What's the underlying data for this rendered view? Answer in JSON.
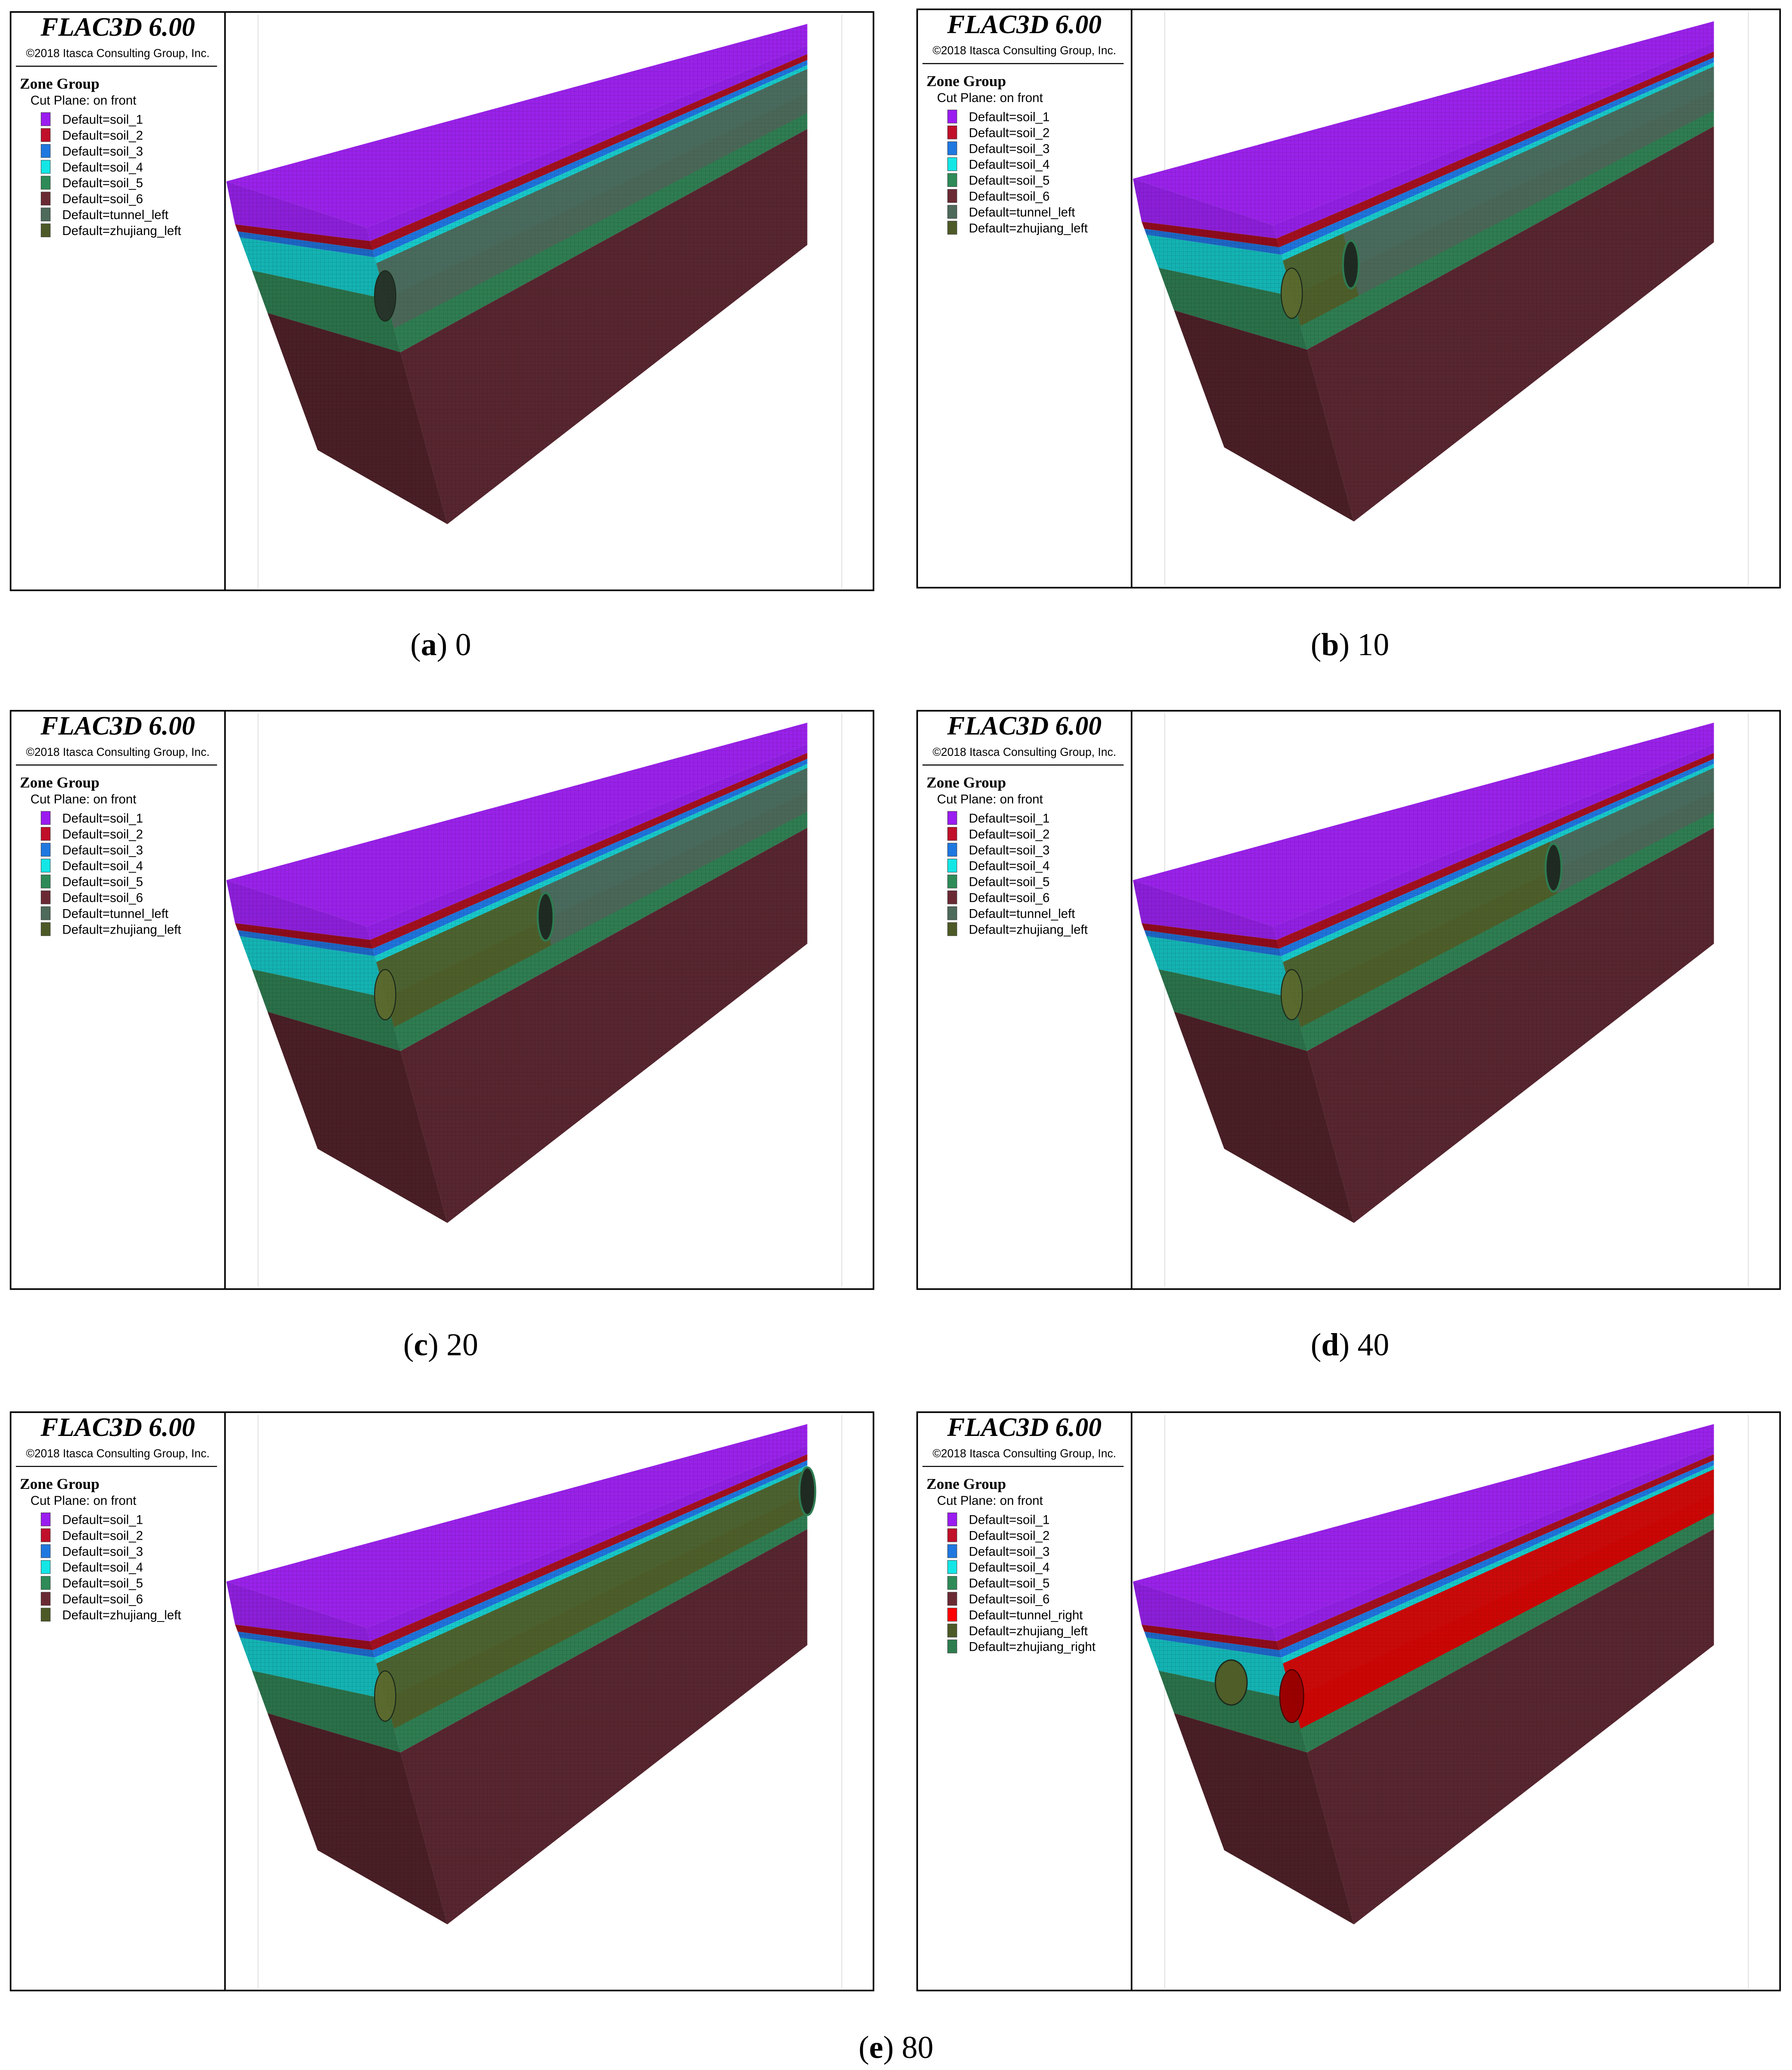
{
  "panels": [
    {
      "title": "FLAC3D 6.00",
      "copyright": "©2018 Itasca Consulting Group, Inc.",
      "legend_title": "Zone Group",
      "cut_plane": "Cut Plane: on front",
      "items": [
        {
          "label": "Default=soil_1",
          "color": "#9b1cf0"
        },
        {
          "label": "Default=soil_2",
          "color": "#c0102a"
        },
        {
          "label": "Default=soil_3",
          "color": "#1f78e0"
        },
        {
          "label": "Default=soil_4",
          "color": "#14e6e6"
        },
        {
          "label": "Default=soil_5",
          "color": "#2e8b57"
        },
        {
          "label": "Default=soil_6",
          "color": "#6a2a34"
        },
        {
          "label": "Default=tunnel_left",
          "color": "#4e6a5a"
        },
        {
          "label": "Default=zhujiang_left",
          "color": "#4d5a27"
        }
      ]
    },
    {
      "title": "FLAC3D 6.00",
      "copyright": "©2018 Itasca Consulting Group, Inc.",
      "legend_title": "Zone Group",
      "cut_plane": "Cut Plane: on front",
      "items": [
        {
          "label": "Default=soil_1",
          "color": "#9b1cf0"
        },
        {
          "label": "Default=soil_2",
          "color": "#c0102a"
        },
        {
          "label": "Default=soil_3",
          "color": "#1f78e0"
        },
        {
          "label": "Default=soil_4",
          "color": "#14e6e6"
        },
        {
          "label": "Default=soil_5",
          "color": "#2e8b57"
        },
        {
          "label": "Default=soil_6",
          "color": "#6a2a34"
        },
        {
          "label": "Default=tunnel_left",
          "color": "#4e6a5a"
        },
        {
          "label": "Default=zhujiang_left",
          "color": "#4d5a27"
        }
      ]
    },
    {
      "title": "FLAC3D 6.00",
      "copyright": "©2018 Itasca Consulting Group, Inc.",
      "legend_title": "Zone Group",
      "cut_plane": "Cut Plane: on front",
      "items": [
        {
          "label": "Default=soil_1",
          "color": "#9b1cf0"
        },
        {
          "label": "Default=soil_2",
          "color": "#c0102a"
        },
        {
          "label": "Default=soil_3",
          "color": "#1f78e0"
        },
        {
          "label": "Default=soil_4",
          "color": "#14e6e6"
        },
        {
          "label": "Default=soil_5",
          "color": "#2e8b57"
        },
        {
          "label": "Default=soil_6",
          "color": "#6a2a34"
        },
        {
          "label": "Default=tunnel_left",
          "color": "#4e6a5a"
        },
        {
          "label": "Default=zhujiang_left",
          "color": "#4d5a27"
        }
      ]
    },
    {
      "title": "FLAC3D 6.00",
      "copyright": "©2018 Itasca Consulting Group, Inc.",
      "legend_title": "Zone Group",
      "cut_plane": "Cut Plane: on front",
      "items": [
        {
          "label": "Default=soil_1",
          "color": "#9b1cf0"
        },
        {
          "label": "Default=soil_2",
          "color": "#c0102a"
        },
        {
          "label": "Default=soil_3",
          "color": "#1f78e0"
        },
        {
          "label": "Default=soil_4",
          "color": "#14e6e6"
        },
        {
          "label": "Default=soil_5",
          "color": "#2e8b57"
        },
        {
          "label": "Default=soil_6",
          "color": "#6a2a34"
        },
        {
          "label": "Default=tunnel_left",
          "color": "#4e6a5a"
        },
        {
          "label": "Default=zhujiang_left",
          "color": "#4d5a27"
        }
      ]
    },
    {
      "title": "FLAC3D 6.00",
      "copyright": "©2018 Itasca Consulting Group, Inc.",
      "legend_title": "Zone Group",
      "cut_plane": "Cut Plane: on front",
      "items": [
        {
          "label": "Default=soil_1",
          "color": "#9b1cf0"
        },
        {
          "label": "Default=soil_2",
          "color": "#c0102a"
        },
        {
          "label": "Default=soil_3",
          "color": "#1f78e0"
        },
        {
          "label": "Default=soil_4",
          "color": "#14e6e6"
        },
        {
          "label": "Default=soil_5",
          "color": "#2e8b57"
        },
        {
          "label": "Default=soil_6",
          "color": "#6a2a34"
        },
        {
          "label": "Default=zhujiang_left",
          "color": "#4d5a27"
        }
      ]
    },
    {
      "title": "FLAC3D 6.00",
      "copyright": "©2018 Itasca Consulting Group, Inc.",
      "legend_title": "Zone Group",
      "cut_plane": "Cut Plane: on front",
      "items": [
        {
          "label": "Default=soil_1",
          "color": "#9b1cf0"
        },
        {
          "label": "Default=soil_2",
          "color": "#c0102a"
        },
        {
          "label": "Default=soil_3",
          "color": "#1f78e0"
        },
        {
          "label": "Default=soil_4",
          "color": "#14e6e6"
        },
        {
          "label": "Default=soil_5",
          "color": "#2e8b57"
        },
        {
          "label": "Default=soil_6",
          "color": "#6a2a34"
        },
        {
          "label": "Default=tunnel_right",
          "color": "#ff0000"
        },
        {
          "label": "Default=zhujiang_left",
          "color": "#4d5a27"
        },
        {
          "label": "Default=zhujiang_right",
          "color": "#2e7d4f"
        }
      ]
    }
  ],
  "captions": [
    {
      "open": "(",
      "letter": "a",
      "rest": ") 0"
    },
    {
      "open": "(",
      "letter": "b",
      "rest": ") 10"
    },
    {
      "open": "(",
      "letter": "c",
      "rest": ") 20"
    },
    {
      "open": "(",
      "letter": "d",
      "rest": ") 40"
    },
    {
      "open": "(",
      "letter": "e",
      "rest": ") 80"
    }
  ]
}
